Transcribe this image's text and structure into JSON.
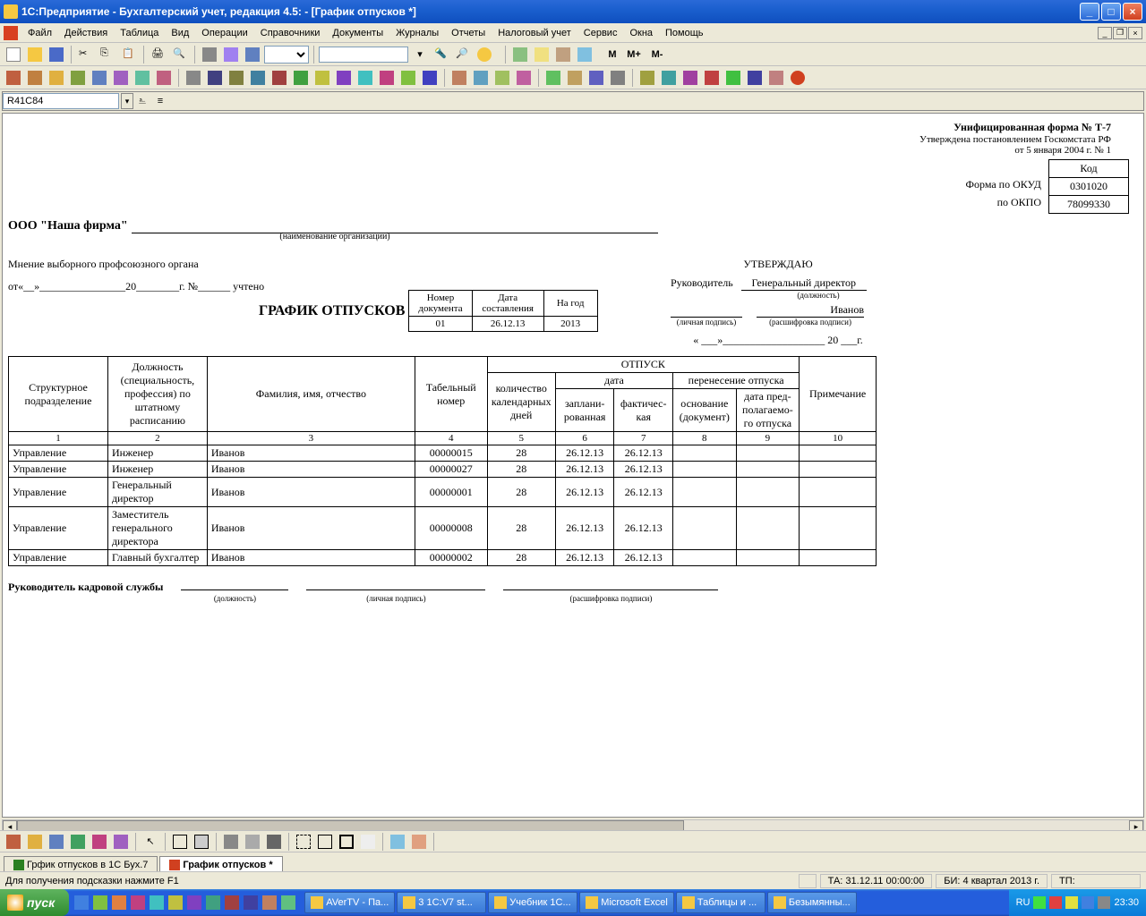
{
  "titlebar": {
    "text": "1С:Предприятие - Бухгалтерский учет, редакция 4.5:                              - [График отпусков  *]"
  },
  "menu": [
    "Файл",
    "Действия",
    "Таблица",
    "Вид",
    "Операции",
    "Справочники",
    "Документы",
    "Журналы",
    "Отчеты",
    "Налоговый учет",
    "Сервис",
    "Окна",
    "Помощь"
  ],
  "cellref": "R41C84",
  "form": {
    "unified": "Унифицированная форма № Т-7",
    "approved_by": "Утверждена постановлением Госкомстата РФ",
    "approved_date": "от 5 января 2004 г. № 1",
    "code_header": "Код",
    "okud_label": "Форма по ОКУД",
    "okud": "0301020",
    "okpo_label": "по ОКПО",
    "okpo": "78099330",
    "org_name": "ООО \"Наша фирма\"",
    "org_caption": "(наименование организации)",
    "union_opinion": "Мнение выборного профсоюзного органа",
    "from_label": "от«__»________________20________г.  №______  учтено",
    "doc_title": "ГРАФИК ОТПУСКОВ",
    "small_h1": "Номер документа",
    "small_h2": "Дата составления",
    "small_h3": "На год",
    "doc_num": "01",
    "doc_date": "26.12.13",
    "doc_year": "2013",
    "approve": "УТВЕРЖДАЮ",
    "manager": "Руководитель",
    "position": "Генеральный директор",
    "position_cap": "(должность)",
    "signer": "Иванов",
    "sig_cap1": "(личная подпись)",
    "sig_cap2": "(расшифровка подписи)",
    "date_quote": "«  ___»___________________ 20 ___г."
  },
  "table": {
    "h1": "Структурное подразделение",
    "h2": "Должность (специальность, профессия) по штатному расписанию",
    "h3": "Фамилия, имя, отчество",
    "h4": "Табельный номер",
    "h5": "ОТПУСК",
    "h6": "Примечание",
    "h5a": "количество календарных дней",
    "h5b": "дата",
    "h5c": "перенесение отпуска",
    "h5b1": "заплани-рованная",
    "h5b2": "фактичес-кая",
    "h5c1": "основание (документ)",
    "h5c2": "дата пред-полагаемо-го отпуска",
    "rows": [
      {
        "dep": "Управление",
        "pos": "Инженер",
        "name": "Иванов",
        "num": "00000015",
        "days": "28",
        "plan": "26.12.13",
        "fact": "26.12.13"
      },
      {
        "dep": "Управление",
        "pos": "Инженер",
        "name": "Иванов",
        "num": "00000027",
        "days": "28",
        "plan": "26.12.13",
        "fact": "26.12.13"
      },
      {
        "dep": "Управление",
        "pos": "Генеральный директор",
        "name": "Иванов",
        "num": "00000001",
        "days": "28",
        "plan": "26.12.13",
        "fact": "26.12.13"
      },
      {
        "dep": "Управление",
        "pos": "Заместитель генерального директора",
        "name": "Иванов",
        "num": "00000008",
        "days": "28",
        "plan": "26.12.13",
        "fact": "26.12.13"
      },
      {
        "dep": "Управление",
        "pos": "Главный бухгалтер",
        "name": "Иванов",
        "num": "00000002",
        "days": "28",
        "plan": "26.12.13",
        "fact": "26.12.13"
      }
    ]
  },
  "hr_head": "Руководитель кадровой службы",
  "hr_cap1": "(должность)",
  "hr_cap2": "(личная подпись)",
  "hr_cap3": "(расшифровка подписи)",
  "tabs": {
    "inactive": "Грфик отпусков в 1С Бух.7",
    "active": "График отпусков  *"
  },
  "status": {
    "hint": "Для получения подсказки нажмите F1",
    "ta": "ТА: 31.12.11  00:00:00",
    "bi": "БИ: 4 квартал 2013 г.",
    "tp": "ТП:"
  },
  "taskbar": {
    "start": "пуск",
    "tasks": [
      "AVerTV - Па...",
      "3 1C:V7 st...",
      "Учебник 1С...",
      "Microsoft Excel",
      "Таблицы и ...",
      "Безымянны..."
    ],
    "lang": "RU",
    "time": "23:30"
  },
  "mtext": {
    "m": "M",
    "mp": "M+",
    "mm": "M-"
  }
}
